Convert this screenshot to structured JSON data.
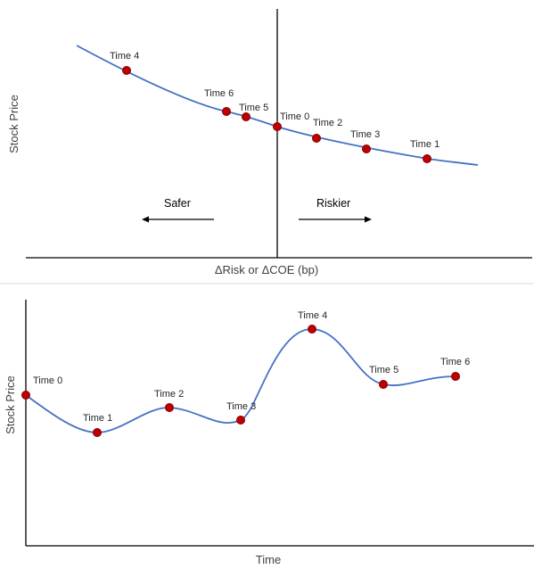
{
  "top_chart": {
    "y_axis_label": "Stock Price",
    "x_axis_label": "ΔRisk or ΔCOE (bp)",
    "safer_label": "Safer",
    "riskier_label": "Riskier",
    "points": [
      {
        "label": "Time 4"
      },
      {
        "label": "Time 6"
      },
      {
        "label": "Time 5"
      },
      {
        "label": "Time 0"
      },
      {
        "label": "Time 2"
      },
      {
        "label": "Time 3"
      },
      {
        "label": "Time 1"
      }
    ]
  },
  "bottom_chart": {
    "y_axis_label": "Stock Price",
    "x_axis_label": "Time",
    "points": [
      {
        "label": "Time 0"
      },
      {
        "label": "Time 1"
      },
      {
        "label": "Time 2"
      },
      {
        "label": "Time 3"
      },
      {
        "label": "Time 4"
      },
      {
        "label": "Time 5"
      },
      {
        "label": "Time 6"
      }
    ]
  },
  "colors": {
    "curve": "#4472c4",
    "marker": "#c00000",
    "axis": "#000000",
    "divider": "#d9d9d9"
  }
}
